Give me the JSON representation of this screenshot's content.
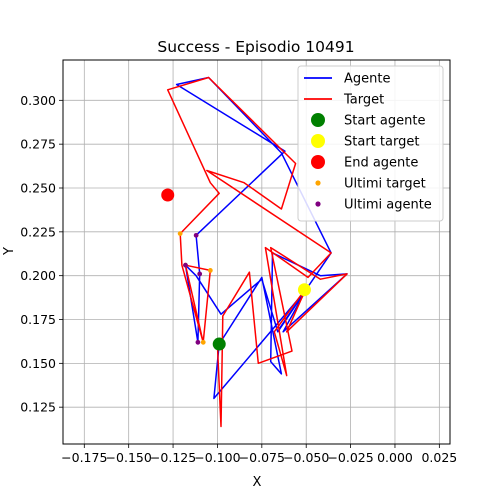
{
  "chart_data": {
    "type": "line",
    "title": "Success - Episodio 10491",
    "xlabel": "X",
    "ylabel": "Y",
    "xlim": [
      -0.187,
      0.031
    ],
    "ylim": [
      0.104,
      0.323
    ],
    "grid": true,
    "legend_position": "top-right",
    "x_ticks": [
      -0.175,
      -0.15,
      -0.125,
      -0.1,
      -0.075,
      -0.05,
      -0.025,
      0.0,
      0.025
    ],
    "x_tick_labels": [
      "−0.175",
      "−0.150",
      "−0.125",
      "−0.100",
      "−0.075",
      "−0.050",
      "−0.025",
      "0.000",
      "0.025"
    ],
    "y_ticks": [
      0.125,
      0.15,
      0.175,
      0.2,
      0.225,
      0.25,
      0.275,
      0.3
    ],
    "y_tick_labels": [
      "0.125",
      "0.150",
      "0.175",
      "0.200",
      "0.225",
      "0.250",
      "0.275",
      "0.300"
    ],
    "series": [
      {
        "name": "Agente",
        "kind": "line",
        "color": "#0000ff",
        "points": [
          [
            -0.099,
            0.161
          ],
          [
            -0.075,
            0.199
          ],
          [
            -0.064,
            0.144
          ],
          [
            -0.07,
            0.151
          ],
          [
            -0.069,
            0.213
          ],
          [
            -0.042,
            0.2
          ],
          [
            -0.027,
            0.201
          ],
          [
            -0.063,
            0.168
          ],
          [
            -0.05,
            0.192
          ],
          [
            -0.065,
            0.17
          ],
          [
            -0.036,
            0.213
          ],
          [
            -0.064,
            0.27
          ],
          [
            -0.105,
            0.313
          ],
          [
            -0.123,
            0.309
          ],
          [
            -0.062,
            0.271
          ],
          [
            -0.112,
            0.223
          ],
          [
            -0.11,
            0.201
          ],
          [
            -0.111,
            0.162
          ],
          [
            -0.118,
            0.206
          ],
          [
            -0.112,
            0.2
          ],
          [
            -0.098,
            0.178
          ],
          [
            -0.075,
            0.198
          ],
          [
            -0.066,
            0.168
          ],
          [
            -0.05,
            0.192
          ],
          [
            -0.102,
            0.13
          ],
          [
            -0.099,
            0.161
          ]
        ]
      },
      {
        "name": "Target",
        "kind": "line",
        "color": "#ff0000",
        "points": [
          [
            -0.1,
            0.161
          ],
          [
            -0.098,
            0.114
          ],
          [
            -0.097,
            0.177
          ],
          [
            -0.082,
            0.202
          ],
          [
            -0.077,
            0.15
          ],
          [
            -0.058,
            0.157
          ],
          [
            -0.07,
            0.216
          ],
          [
            -0.042,
            0.198
          ],
          [
            -0.027,
            0.201
          ],
          [
            -0.061,
            0.168
          ],
          [
            -0.05,
            0.193
          ],
          [
            -0.068,
            0.168
          ],
          [
            -0.061,
            0.143
          ],
          [
            -0.073,
            0.216
          ],
          [
            -0.049,
            0.199
          ],
          [
            -0.036,
            0.213
          ],
          [
            -0.106,
            0.26
          ],
          [
            -0.085,
            0.253
          ],
          [
            -0.064,
            0.238
          ],
          [
            -0.056,
            0.264
          ],
          [
            -0.105,
            0.313
          ],
          [
            -0.128,
            0.306
          ],
          [
            -0.104,
            0.253
          ],
          [
            -0.099,
            0.247
          ],
          [
            -0.121,
            0.224
          ],
          [
            -0.12,
            0.206
          ],
          [
            -0.108,
            0.162
          ],
          [
            -0.118,
            0.206
          ],
          [
            -0.104,
            0.203
          ],
          [
            -0.108,
            0.162
          ]
        ]
      }
    ],
    "markers": [
      {
        "name": "Start agente",
        "color": "#008000",
        "size": 10,
        "points": [
          [
            -0.099,
            0.161
          ]
        ]
      },
      {
        "name": "Start target",
        "color": "#ffff00",
        "size": 10,
        "points": [
          [
            -0.051,
            0.192
          ]
        ]
      },
      {
        "name": "End agente",
        "color": "#ff0000",
        "size": 10,
        "points": [
          [
            -0.128,
            0.246
          ]
        ]
      },
      {
        "name": "Ultimi target",
        "color": "#ffa500",
        "size": 4,
        "points": [
          [
            -0.108,
            0.162
          ],
          [
            -0.104,
            0.203
          ],
          [
            -0.118,
            0.206
          ],
          [
            -0.121,
            0.224
          ],
          [
            -0.128,
            0.246
          ]
        ]
      },
      {
        "name": "Ultimi agente",
        "color": "#800080",
        "size": 4,
        "points": [
          [
            -0.111,
            0.162
          ],
          [
            -0.11,
            0.201
          ],
          [
            -0.118,
            0.206
          ],
          [
            -0.112,
            0.223
          ],
          [
            -0.128,
            0.246
          ]
        ]
      }
    ],
    "legend": [
      {
        "label": "Agente",
        "kind": "line",
        "color": "#0000ff"
      },
      {
        "label": "Target",
        "kind": "line",
        "color": "#ff0000"
      },
      {
        "label": "Start agente",
        "kind": "marker",
        "color": "#008000",
        "size": "big"
      },
      {
        "label": "Start target",
        "kind": "marker",
        "color": "#ffff00",
        "size": "big"
      },
      {
        "label": "End agente",
        "kind": "marker",
        "color": "#ff0000",
        "size": "big"
      },
      {
        "label": "Ultimi target",
        "kind": "marker",
        "color": "#ffa500",
        "size": "small"
      },
      {
        "label": "Ultimi agente",
        "kind": "marker",
        "color": "#800080",
        "size": "small"
      }
    ]
  }
}
